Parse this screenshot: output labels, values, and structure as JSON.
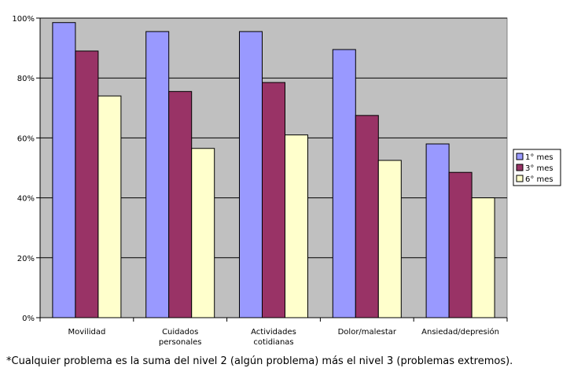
{
  "chart_data": {
    "type": "bar",
    "categories": [
      [
        "Movilidad"
      ],
      [
        "Cuidados",
        "personales"
      ],
      [
        "Actividades",
        "cotidianas"
      ],
      [
        "Dolor/malestar"
      ],
      [
        "Ansiedad/depresión"
      ]
    ],
    "series": [
      {
        "name": "1° mes",
        "color": "#9999ff",
        "values": [
          98.5,
          95.5,
          95.5,
          89.5,
          58
        ]
      },
      {
        "name": "3° mes",
        "color": "#993366",
        "values": [
          89,
          75.5,
          78.5,
          67.5,
          48.5
        ]
      },
      {
        "name": "6° mes",
        "color": "#ffffcc",
        "values": [
          74,
          56.5,
          61,
          52.5,
          40
        ]
      }
    ],
    "ylim": [
      0,
      100
    ],
    "yticks": [
      0,
      20,
      40,
      60,
      80,
      100
    ],
    "ytick_labels": [
      "0%",
      "20%",
      "40%",
      "60%",
      "80%",
      "100%"
    ],
    "plot_background": "#c0c0c0",
    "grid": true,
    "legend_position": "right"
  },
  "footnote": "*Cualquier problema es la suma del nivel 2 (algún problema) más el nivel 3 (problemas extremos)."
}
